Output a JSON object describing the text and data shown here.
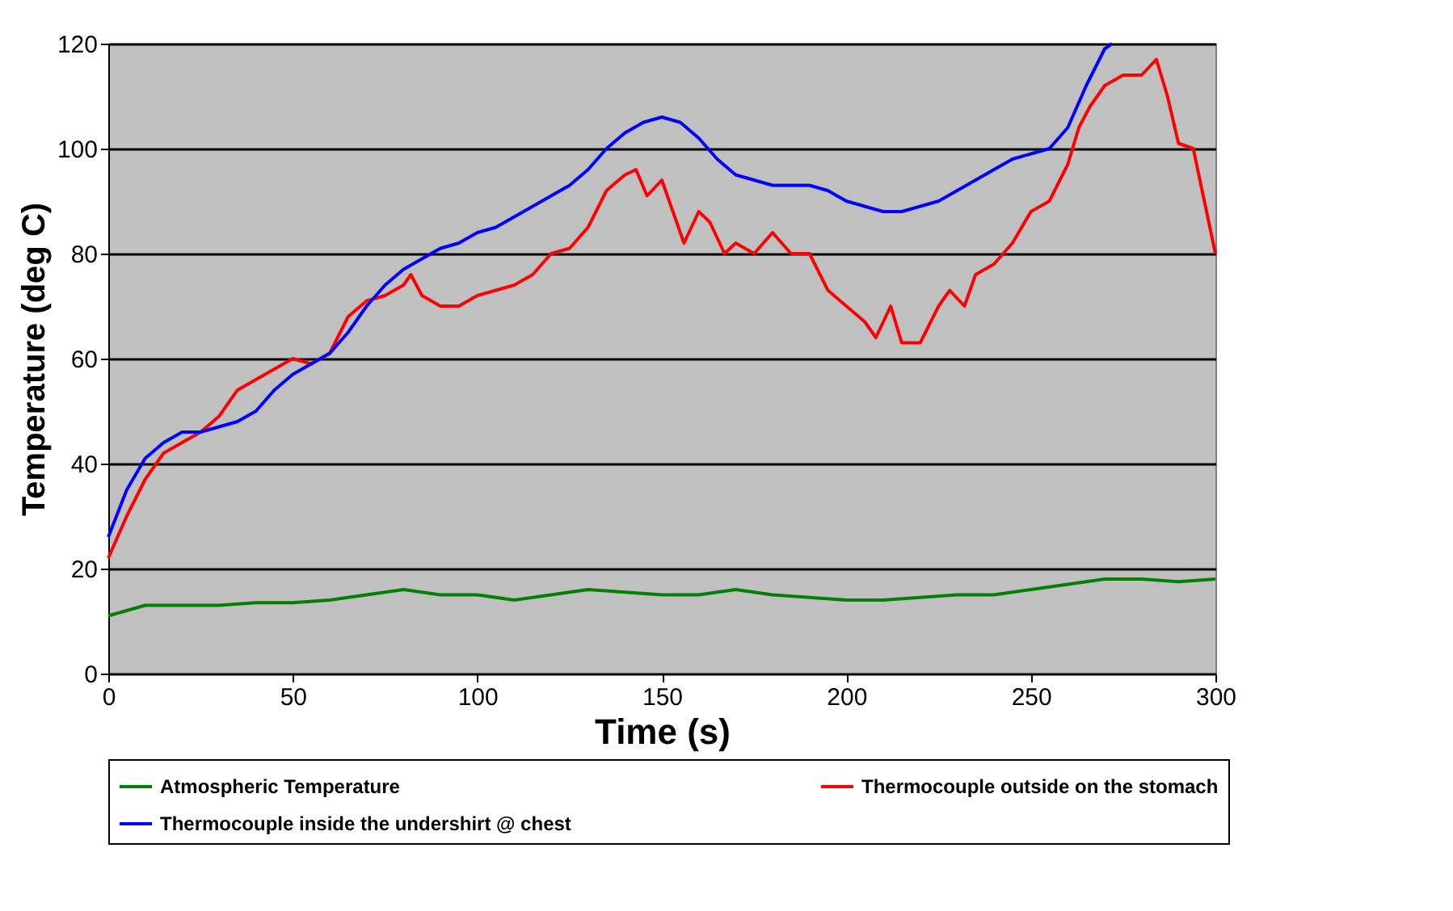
{
  "chart_data": {
    "type": "line",
    "xlabel": "Time  (s)",
    "ylabel": "Temperature (deg C)",
    "xlim": [
      0,
      300
    ],
    "xticks": [
      0,
      50,
      100,
      150,
      200,
      250,
      300
    ],
    "ylim": [
      0,
      120
    ],
    "yticks": [
      0,
      20,
      40,
      60,
      80,
      100,
      120
    ],
    "grid": "y",
    "legend": "bottom",
    "marker": "none",
    "line_style": "solid",
    "series": [
      {
        "name": "Atmospheric Temperature",
        "color": "#008000",
        "x": [
          0,
          5,
          10,
          30,
          40,
          50,
          60,
          70,
          80,
          90,
          100,
          110,
          120,
          130,
          140,
          150,
          160,
          170,
          180,
          190,
          200,
          210,
          220,
          230,
          240,
          250,
          260,
          270,
          280,
          290,
          300
        ],
        "values": [
          11,
          12,
          13,
          13,
          13.5,
          13.5,
          14,
          15,
          16,
          15,
          15,
          14,
          15,
          16,
          15.5,
          15,
          15,
          16,
          15,
          14.5,
          14,
          14,
          14.5,
          15,
          15,
          16,
          17,
          18,
          18,
          17.5,
          18
        ]
      },
      {
        "name": "Thermocouple outside on the stomach",
        "color": "#ff0000",
        "x": [
          0,
          5,
          10,
          15,
          20,
          25,
          30,
          35,
          40,
          45,
          50,
          55,
          60,
          65,
          70,
          75,
          80,
          82,
          85,
          90,
          95,
          100,
          105,
          110,
          115,
          120,
          125,
          130,
          135,
          140,
          143,
          146,
          150,
          153,
          156,
          160,
          163,
          167,
          170,
          175,
          180,
          185,
          190,
          195,
          200,
          205,
          208,
          212,
          215,
          220,
          225,
          228,
          232,
          235,
          240,
          245,
          250,
          255,
          260,
          263,
          266,
          270,
          275,
          280,
          284,
          287,
          290,
          294,
          297,
          300
        ],
        "values": [
          22,
          30,
          37,
          42,
          44,
          46,
          49,
          54,
          56,
          58,
          60,
          59,
          61,
          68,
          71,
          72,
          74,
          76,
          72,
          70,
          70,
          72,
          73,
          74,
          76,
          80,
          81,
          85,
          92,
          95,
          96,
          91,
          94,
          88,
          82,
          88,
          86,
          80,
          82,
          80,
          84,
          80,
          80,
          73,
          70,
          67,
          64,
          70,
          63,
          63,
          70,
          73,
          70,
          76,
          78,
          82,
          88,
          90,
          97,
          104,
          108,
          112,
          114,
          114,
          117,
          110,
          101,
          100,
          90,
          80
        ]
      },
      {
        "name": "Thermocouple inside the undershirt @ chest",
        "color": "#0000ff",
        "x": [
          0,
          5,
          10,
          15,
          20,
          25,
          30,
          35,
          40,
          45,
          50,
          55,
          60,
          65,
          70,
          75,
          80,
          85,
          90,
          95,
          100,
          105,
          110,
          115,
          120,
          125,
          130,
          135,
          140,
          145,
          150,
          155,
          160,
          165,
          170,
          175,
          180,
          185,
          190,
          195,
          200,
          205,
          210,
          215,
          220,
          225,
          230,
          235,
          240,
          245,
          250,
          255,
          260,
          265,
          270,
          272
        ],
        "values": [
          26,
          35,
          41,
          44,
          46,
          46,
          47,
          48,
          50,
          54,
          57,
          59,
          61,
          65,
          70,
          74,
          77,
          79,
          81,
          82,
          84,
          85,
          87,
          89,
          91,
          93,
          96,
          100,
          103,
          105,
          106,
          105,
          102,
          98,
          95,
          94,
          93,
          93,
          93,
          92,
          90,
          89,
          88,
          88,
          89,
          90,
          92,
          94,
          96,
          98,
          99,
          100,
          104,
          112,
          119,
          120
        ]
      }
    ]
  }
}
